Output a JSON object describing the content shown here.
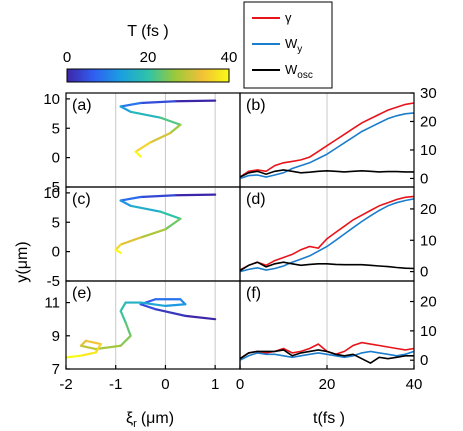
{
  "chart_data": {
    "type": "line",
    "colorbar": {
      "title": "T (fs )",
      "ticks": [
        "0",
        "20",
        "40"
      ],
      "range": [
        0,
        40
      ],
      "colors": [
        "#3e26a8",
        "#2f5ff2",
        "#1aa0e0",
        "#2ec3a9",
        "#9ac93b",
        "#f2c037",
        "#f9fb15"
      ]
    },
    "legend": {
      "placement": "top-center",
      "entries": [
        {
          "label": "γ",
          "color": "#e8141b"
        },
        {
          "label": "W",
          "sub": "y",
          "color": "#1b7dcb"
        },
        {
          "label": "W",
          "sub": "osc",
          "color": "#000000"
        }
      ]
    },
    "left_xlabel": {
      "main": "ξ",
      "sub": "r",
      "rest": "(μm)"
    },
    "left_ylabel": "y(μm)",
    "right_xlabel": "t(fs )",
    "left_xticks": [
      "-2",
      "-1",
      "0",
      "1"
    ],
    "left_xlim": [
      -2,
      1.5
    ],
    "right_xticks": [
      "0",
      "20",
      "40"
    ],
    "right_xlim": [
      0,
      40
    ],
    "panels": [
      {
        "id": "a",
        "label": "(a)",
        "kind": "trajectory",
        "ylim": [
          -5,
          11
        ],
        "yticks": [
          "10",
          "5",
          "0",
          "-5"
        ],
        "x": [
          1.0,
          0.2,
          -0.5,
          -0.9,
          -0.7,
          -0.1,
          0.3,
          0.1,
          -0.3,
          -0.6,
          -0.5
        ],
        "y": [
          9.7,
          9.6,
          9.3,
          8.7,
          7.8,
          6.8,
          5.6,
          4.2,
          2.6,
          1.0,
          0.2
        ]
      },
      {
        "id": "b",
        "label": "(b)",
        "kind": "time",
        "ylim": [
          -3,
          30
        ],
        "yticks": [
          "30",
          "20",
          "10",
          "0"
        ],
        "t": [
          0,
          2,
          4,
          6,
          8,
          10,
          12,
          14,
          16,
          18,
          20,
          22,
          24,
          26,
          28,
          30,
          32,
          34,
          36,
          38,
          40
        ],
        "series": [
          {
            "color": "#e8141b",
            "values": [
              0.5,
              2.5,
              3.0,
              2.5,
              4.5,
              5.5,
              6.0,
              6.5,
              7.5,
              9.5,
              11.5,
              13.5,
              15.5,
              17.5,
              19.5,
              21.0,
              22.5,
              24.0,
              25.0,
              26.0,
              26.5
            ]
          },
          {
            "color": "#1b7dcb",
            "values": [
              0.0,
              1.0,
              1.2,
              0.5,
              1.2,
              2.0,
              3.5,
              4.5,
              5.5,
              7.0,
              8.5,
              10.5,
              12.5,
              14.5,
              16.5,
              18.0,
              19.5,
              21.0,
              22.0,
              22.7,
              23.0
            ]
          },
          {
            "color": "#000000",
            "values": [
              0.5,
              2.0,
              2.5,
              1.5,
              2.5,
              3.0,
              2.5,
              2.0,
              2.2,
              2.5,
              2.7,
              2.5,
              2.3,
              2.5,
              2.7,
              2.5,
              2.3,
              2.4,
              2.4,
              2.3,
              2.3
            ]
          }
        ]
      },
      {
        "id": "c",
        "label": "(c)",
        "kind": "trajectory",
        "ylim": [
          -5,
          11
        ],
        "yticks": [
          "10",
          "5",
          "0",
          "-5"
        ],
        "x": [
          1.0,
          0.2,
          -0.5,
          -0.9,
          -0.7,
          -0.1,
          0.3,
          0.0,
          -0.5,
          -0.9,
          -1.0,
          -0.9
        ],
        "y": [
          9.7,
          9.6,
          9.3,
          8.7,
          7.8,
          6.8,
          5.6,
          3.8,
          2.4,
          1.2,
          0.3,
          -0.2
        ]
      },
      {
        "id": "d",
        "label": "(d)",
        "kind": "time",
        "ylim": [
          -3,
          27
        ],
        "yticks": [
          "20",
          "10",
          "0"
        ],
        "t": [
          0,
          2,
          4,
          6,
          8,
          10,
          12,
          14,
          16,
          18,
          20,
          22,
          24,
          26,
          28,
          30,
          32,
          34,
          36,
          38,
          40
        ],
        "series": [
          {
            "color": "#e8141b",
            "values": [
              0.5,
              2.0,
              3.0,
              2.0,
              3.5,
              4.5,
              5.5,
              7.0,
              8.0,
              7.5,
              10.5,
              12.5,
              14.5,
              16.5,
              18.0,
              19.5,
              21.0,
              22.0,
              23.0,
              23.7,
              24.0
            ]
          },
          {
            "color": "#1b7dcb",
            "values": [
              0.0,
              0.7,
              1.2,
              0.5,
              1.0,
              1.8,
              3.0,
              4.0,
              5.0,
              6.5,
              8.0,
              10.0,
              12.0,
              14.0,
              16.0,
              17.8,
              19.5,
              21.0,
              22.0,
              22.7,
              23.2
            ]
          },
          {
            "color": "#000000",
            "values": [
              0.3,
              2.0,
              3.0,
              1.5,
              2.5,
              3.0,
              2.5,
              2.0,
              2.3,
              2.5,
              2.5,
              2.3,
              2.2,
              2.2,
              2.2,
              2.0,
              1.8,
              1.6,
              1.3,
              1.1,
              1.0
            ]
          }
        ]
      },
      {
        "id": "e",
        "label": "(e)",
        "kind": "trajectory",
        "ylim": [
          7,
          12.3
        ],
        "yticks": [
          "11",
          "9",
          "7"
        ],
        "x": [
          1.0,
          0.4,
          -0.2,
          -0.5,
          -0.2,
          0.3,
          0.4,
          0.0,
          -0.5,
          -0.8,
          -0.9,
          -0.8,
          -0.7,
          -0.9,
          -1.4,
          -1.7,
          -1.6,
          -1.3,
          -1.4,
          -1.7,
          -2.0
        ],
        "y": [
          10.0,
          10.2,
          10.6,
          10.9,
          11.2,
          11.2,
          10.9,
          10.8,
          11.0,
          11.0,
          10.5,
          9.8,
          9.0,
          8.4,
          8.2,
          8.4,
          8.7,
          8.5,
          8.0,
          7.8,
          7.7
        ]
      },
      {
        "id": "f",
        "label": "(f)",
        "kind": "time",
        "ylim": [
          -3,
          27
        ],
        "yticks": [
          "20",
          "10",
          "0"
        ],
        "t": [
          0,
          2,
          4,
          6,
          8,
          10,
          12,
          14,
          16,
          18,
          20,
          22,
          24,
          26,
          28,
          30,
          32,
          34,
          36,
          38,
          40
        ],
        "series": [
          {
            "color": "#e8141b",
            "values": [
              0.5,
              2.5,
              3.0,
              2.5,
              3.0,
              4.0,
              2.5,
              3.0,
              4.0,
              5.5,
              3.0,
              2.0,
              3.0,
              5.0,
              6.0,
              5.5,
              5.0,
              4.5,
              4.0,
              3.5,
              4.0
            ]
          },
          {
            "color": "#1b7dcb",
            "values": [
              0.0,
              1.5,
              2.5,
              2.0,
              2.0,
              1.5,
              1.0,
              1.5,
              2.0,
              2.5,
              2.0,
              1.5,
              1.0,
              1.5,
              2.5,
              3.0,
              2.5,
              2.0,
              1.5,
              2.0,
              3.0
            ]
          },
          {
            "color": "#000000",
            "values": [
              0.5,
              2.5,
              3.0,
              3.0,
              3.0,
              3.5,
              1.5,
              2.5,
              3.0,
              3.5,
              3.0,
              2.0,
              1.5,
              2.0,
              0.5,
              -1.0,
              1.0,
              0.5,
              1.0,
              1.5,
              1.5
            ]
          }
        ]
      }
    ]
  }
}
